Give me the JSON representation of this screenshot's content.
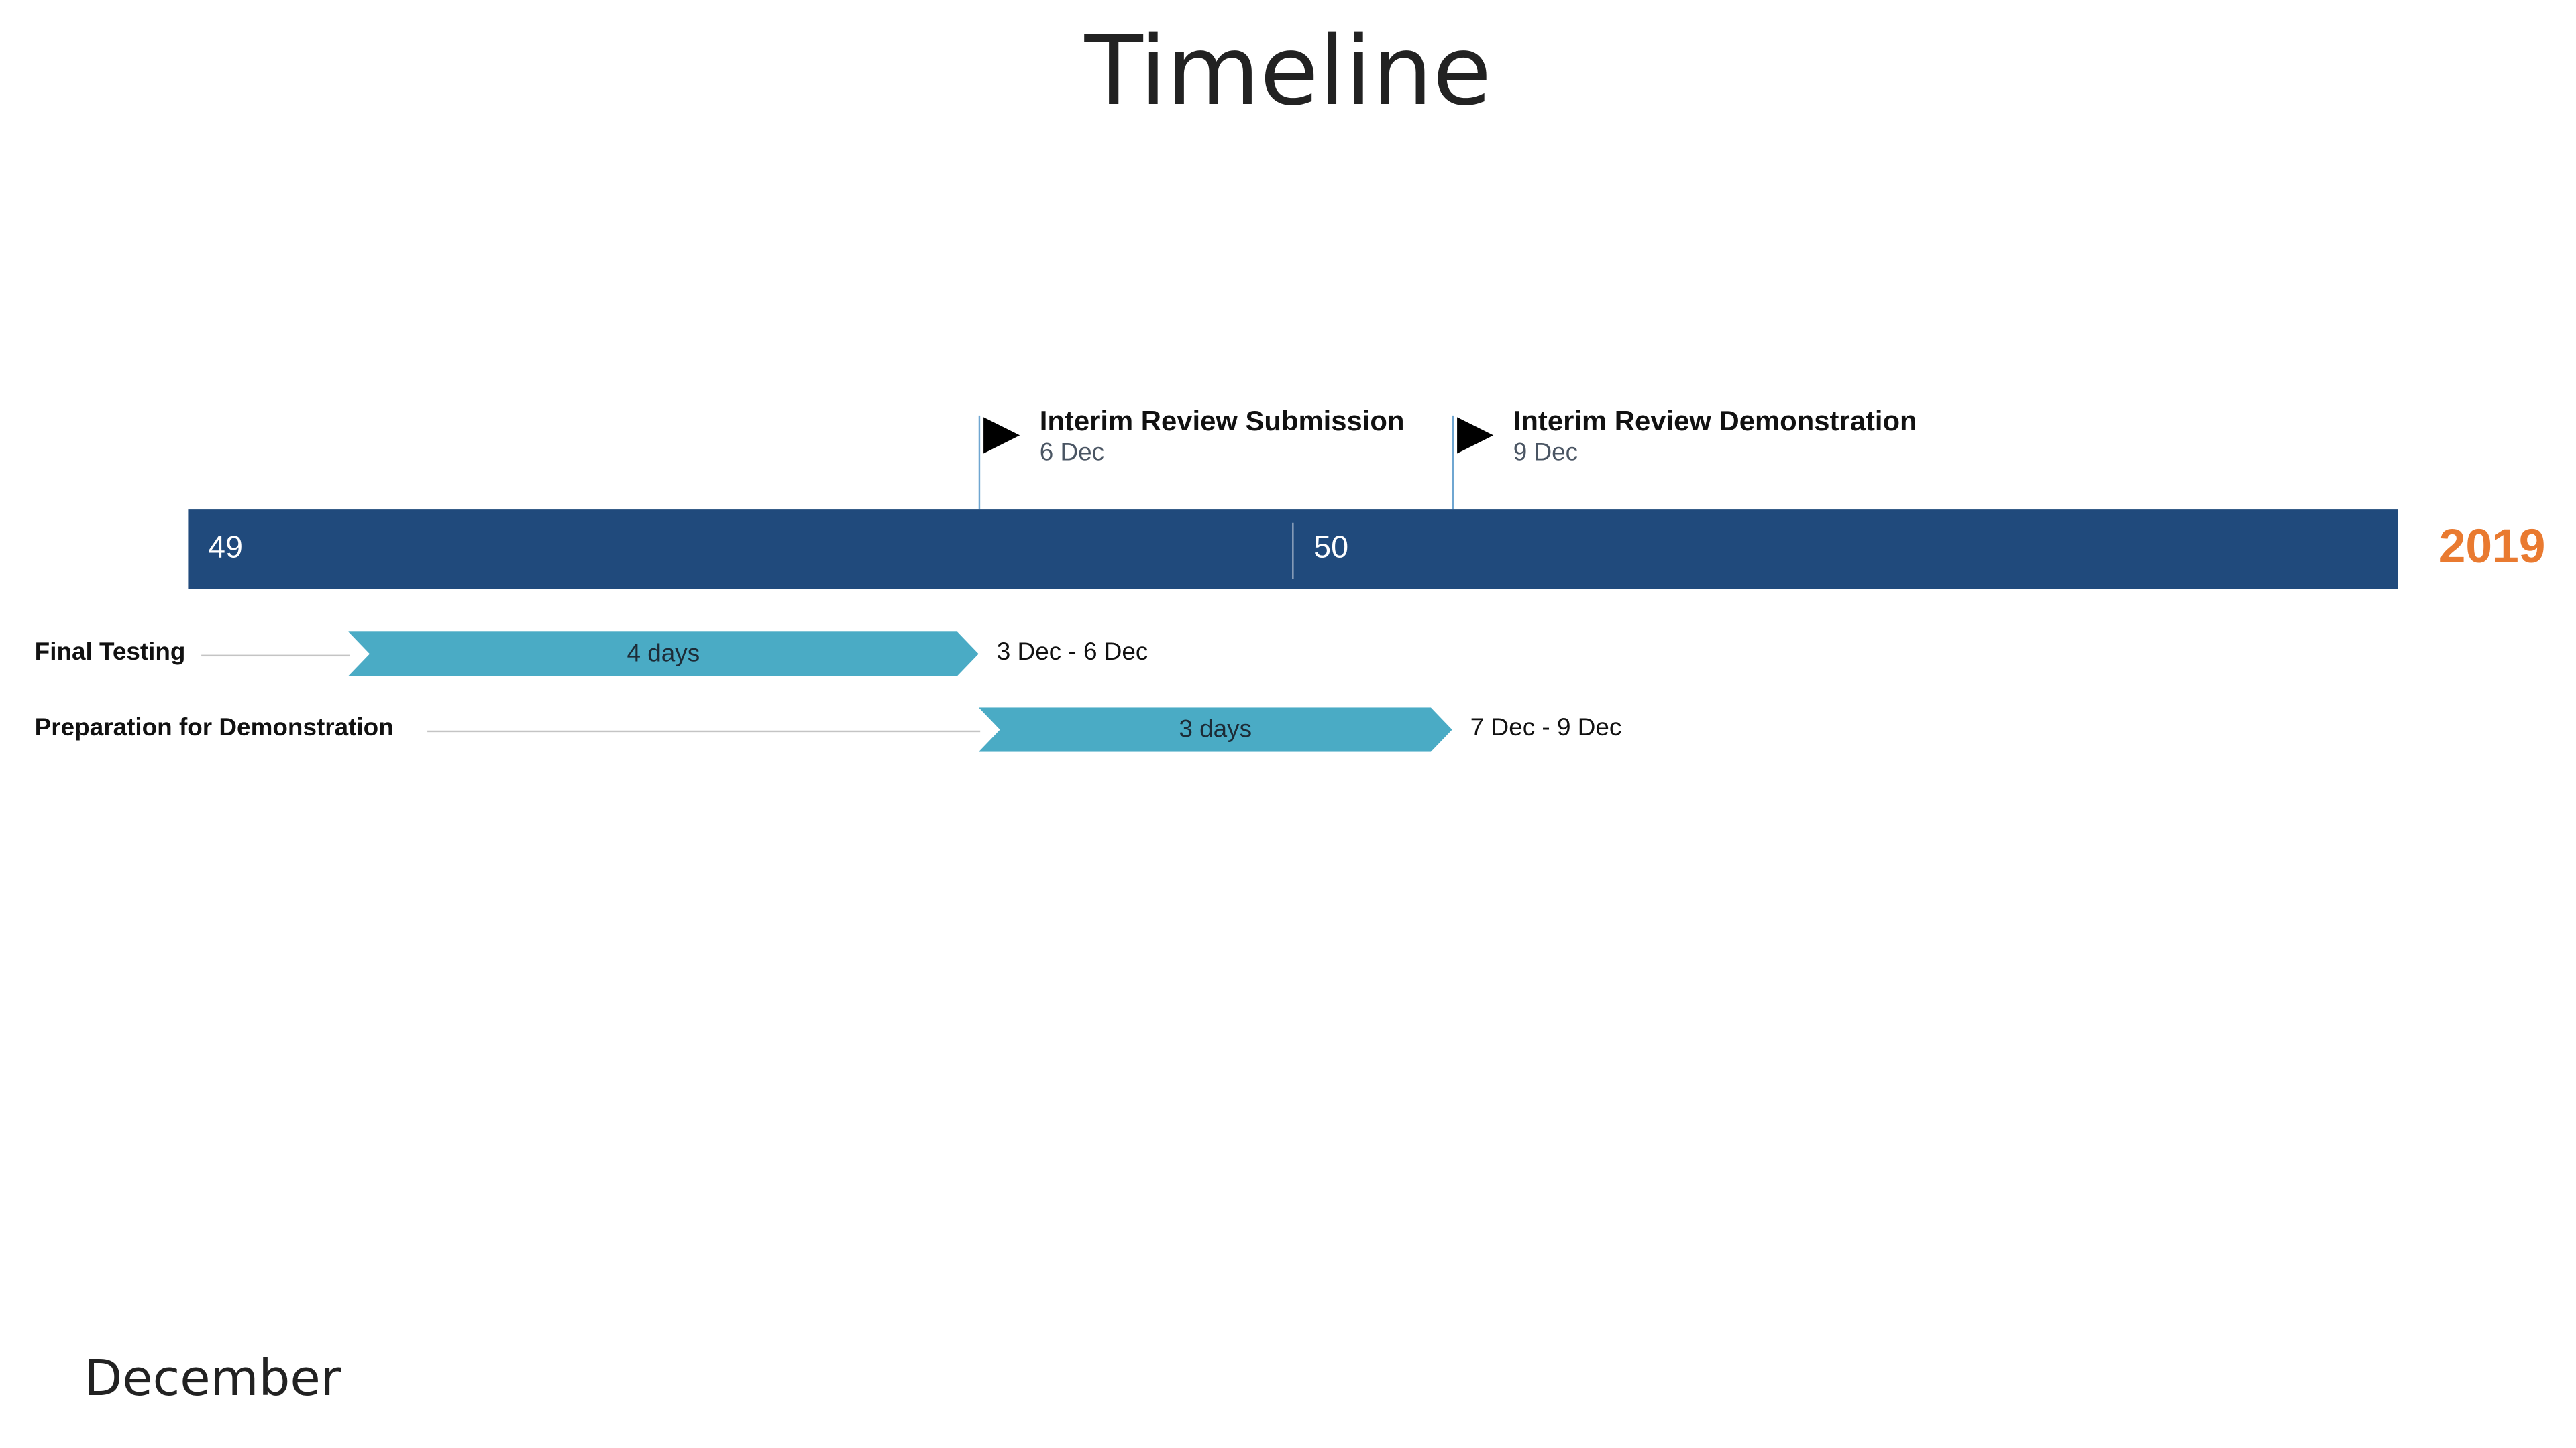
{
  "title": "Timeline",
  "month_label": "December",
  "year_label": "2019",
  "colors": {
    "scale_bar": "#204a7c",
    "task_bar": "#4aabc5",
    "year": "#e97a30",
    "milestone_line": "#6fa6d1",
    "milestone_flag": "#000000"
  },
  "scale": {
    "weeks": [
      {
        "label": "49"
      },
      {
        "label": "50"
      }
    ]
  },
  "milestones": [
    {
      "name": "Interim Review Submission",
      "date": "6 Dec",
      "icon": "flag-icon"
    },
    {
      "name": "Interim Review Demonstration",
      "date": "9 Dec",
      "icon": "flag-icon"
    }
  ],
  "tasks": [
    {
      "name": "Final Testing",
      "duration": "4 days",
      "range": "3 Dec - 6 Dec"
    },
    {
      "name": "Preparation for Demonstration",
      "duration": "3 days",
      "range": "7 Dec - 9 Dec"
    }
  ]
}
